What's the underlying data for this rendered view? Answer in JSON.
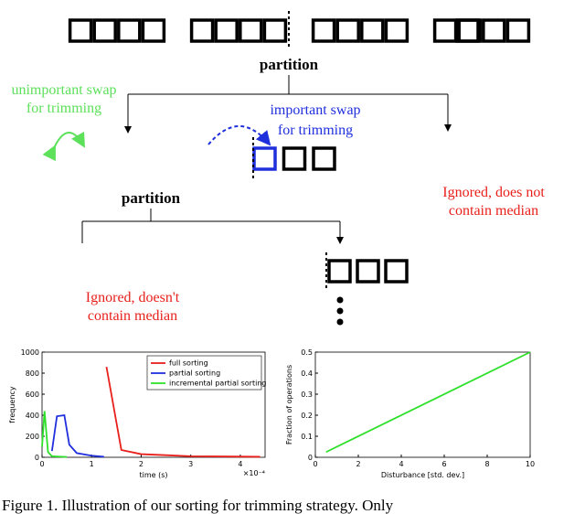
{
  "diagram": {
    "partition_top": "partition",
    "unimportant_swap": [
      "unimportant swap",
      "for trimming"
    ],
    "important_swap": [
      "important swap",
      "for trimming"
    ],
    "ignored_right": [
      "Ignored, does not",
      "contain median"
    ],
    "partition_mid": "partition",
    "ignored_left": [
      "Ignored, doesn't",
      "contain median"
    ]
  },
  "chart_data": [
    {
      "type": "line",
      "xlabel": "time (s)",
      "ylabel": "frequency",
      "x_exponent_label": "×10⁻⁴",
      "xlim": [
        0,
        0.00045
      ],
      "ylim": [
        0,
        1000
      ],
      "xticks": [
        {
          "value": 0,
          "label": "0"
        },
        {
          "value": 0.0001,
          "label": "1"
        },
        {
          "value": 0.0002,
          "label": "2"
        },
        {
          "value": 0.0003,
          "label": "3"
        },
        {
          "value": 0.0004,
          "label": "4"
        }
      ],
      "yticks": [
        0,
        200,
        400,
        600,
        800,
        1000
      ],
      "legend": "upper right",
      "series": [
        {
          "name": "full sorting",
          "color": "#e8201c",
          "x": [
            0.00013,
            0.00016,
            0.0002,
            0.00025,
            0.0003,
            0.00044
          ],
          "values": [
            860,
            70,
            30,
            20,
            10,
            5
          ]
        },
        {
          "name": "partial sorting",
          "color": "#1f2fdc",
          "x": [
            2e-05,
            3e-05,
            4.5e-05,
            5.5e-05,
            7e-05,
            0.0001,
            0.000125
          ],
          "values": [
            60,
            390,
            400,
            120,
            40,
            15,
            5
          ]
        },
        {
          "name": "incremental partial sorting",
          "color": "#2ee02a",
          "x": [
            0,
            5e-06,
            1.2e-05,
            2e-05,
            5e-05
          ],
          "values": [
            100,
            440,
            50,
            10,
            3
          ]
        }
      ]
    },
    {
      "type": "line",
      "xlabel": "Disturbance [std. dev.]",
      "ylabel": "Fraction of operations",
      "xlim": [
        0,
        10
      ],
      "ylim": [
        0,
        0.5
      ],
      "xticks": [
        0,
        2,
        4,
        6,
        8,
        10
      ],
      "yticks": [
        0,
        0.1,
        0.2,
        0.3,
        0.4,
        0.5
      ],
      "series": [
        {
          "color": "#2ee02a",
          "x": [
            0.5,
            10
          ],
          "values": [
            0.025,
            0.5
          ]
        }
      ]
    }
  ],
  "caption": "Figure 1. Illustration of our sorting for trimming strategy. Only"
}
